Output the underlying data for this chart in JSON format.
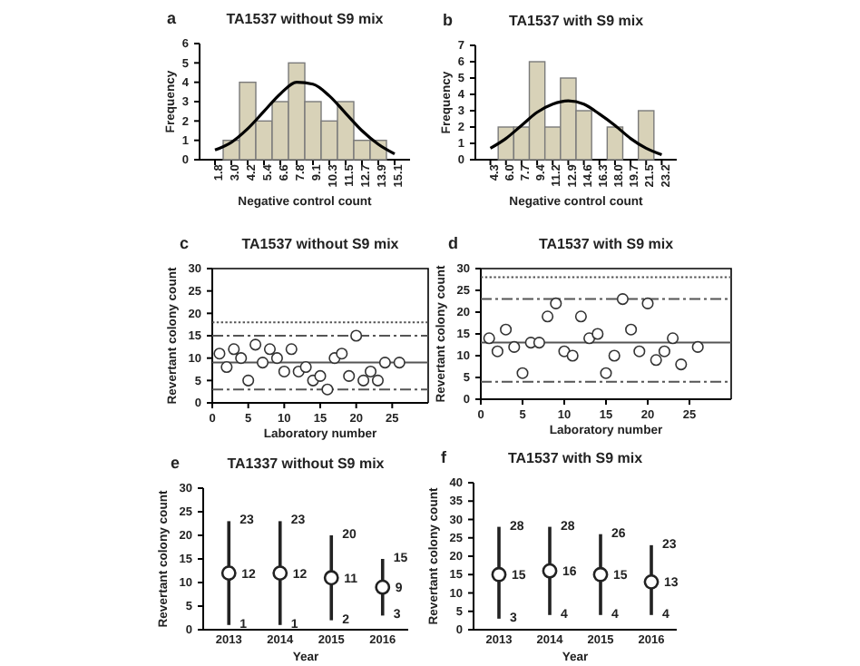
{
  "chart_data": [
    {
      "type": "bar",
      "title": "TA1537 without S9 mix",
      "xlabel": "Negative control count",
      "ylabel": "Frequency",
      "annotations": [
        "a"
      ],
      "categories": [
        "1.8",
        "3.0",
        "4.2",
        "5.4",
        "6.6",
        "7.8",
        "9.1",
        "10.3",
        "11.5",
        "12.7",
        "13.9",
        "15.1"
      ],
      "series": [
        {
          "type": "bar",
          "color": "#d8d2b8",
          "values": [
            0,
            1,
            4,
            2,
            3,
            5,
            3,
            2,
            3,
            1,
            1,
            0
          ]
        },
        {
          "type": "line",
          "color": "#000000",
          "values": [
            0.5,
            0.9,
            1.6,
            2.5,
            3.4,
            4.0,
            3.9,
            3.3,
            2.4,
            1.5,
            0.8,
            0.3
          ]
        }
      ],
      "ylim": [
        0,
        6
      ],
      "yticks": [
        0,
        1,
        2,
        3,
        4,
        5,
        6
      ]
    },
    {
      "type": "bar",
      "title": "TA1537 with S9 mix",
      "xlabel": "Negative control count",
      "ylabel": "Frequency",
      "annotations": [
        "b"
      ],
      "categories": [
        "4.3",
        "6.0",
        "7.7",
        "9.4",
        "11.2",
        "12.9",
        "14.6",
        "16.3",
        "18.0",
        "19.7",
        "21.5",
        "23.2"
      ],
      "series": [
        {
          "type": "bar",
          "color": "#d8d2b8",
          "values": [
            0,
            2,
            2,
            6,
            2,
            5,
            3,
            0,
            2,
            0,
            3,
            0
          ]
        },
        {
          "type": "line",
          "color": "#000000",
          "values": [
            0.7,
            1.3,
            2.1,
            2.9,
            3.4,
            3.6,
            3.4,
            2.8,
            2.1,
            1.3,
            0.7,
            0.3
          ]
        }
      ],
      "ylim": [
        0,
        7
      ],
      "yticks": [
        0,
        1,
        2,
        3,
        4,
        5,
        6,
        7
      ]
    },
    {
      "type": "scatter",
      "title": "TA1537 without S9 mix",
      "xlabel": "Laboratory number",
      "ylabel": "Revertant colony count",
      "annotations": [
        "c"
      ],
      "marker": "circle",
      "x": [
        1,
        2,
        3,
        4,
        5,
        6,
        7,
        8,
        9,
        10,
        11,
        12,
        13,
        14,
        15,
        16,
        17,
        18,
        19,
        20,
        21,
        22,
        23,
        24,
        26
      ],
      "series": [
        {
          "color": "#333333",
          "values": [
            11,
            8,
            12,
            10,
            5,
            13,
            9,
            12,
            10,
            7,
            12,
            7,
            8,
            5,
            6,
            3,
            10,
            11,
            6,
            15,
            5,
            7,
            5,
            9,
            9
          ]
        }
      ],
      "xlim": [
        0,
        30
      ],
      "xticks": [
        0,
        5,
        10,
        15,
        20,
        25
      ],
      "ylim": [
        0,
        30
      ],
      "yticks": [
        0,
        5,
        10,
        15,
        20,
        25,
        30
      ],
      "ref_lines": [
        {
          "axis": "y",
          "value": 9,
          "line_style": "solid",
          "color": "#555555"
        },
        {
          "axis": "y",
          "value": 15,
          "line_style": "dashed",
          "color": "#555555"
        },
        {
          "axis": "y",
          "value": 3,
          "line_style": "dashed",
          "color": "#555555"
        },
        {
          "axis": "y",
          "value": 18,
          "line_style": "dotted",
          "color": "#555555"
        }
      ]
    },
    {
      "type": "scatter",
      "title": "TA1537 with S9 mix",
      "xlabel": "Laboratory number",
      "ylabel": "Revertant colony count",
      "annotations": [
        "d"
      ],
      "marker": "circle",
      "x": [
        1,
        2,
        3,
        4,
        5,
        6,
        7,
        8,
        9,
        10,
        11,
        12,
        13,
        14,
        15,
        16,
        17,
        18,
        19,
        20,
        21,
        22,
        23,
        24,
        26
      ],
      "series": [
        {
          "color": "#333333",
          "values": [
            14,
            11,
            16,
            12,
            6,
            13,
            13,
            19,
            22,
            11,
            10,
            19,
            14,
            15,
            6,
            10,
            23,
            16,
            11,
            22,
            9,
            11,
            14,
            8,
            12
          ]
        }
      ],
      "xlim": [
        0,
        30
      ],
      "xticks": [
        0,
        5,
        10,
        15,
        20,
        25
      ],
      "ylim": [
        0,
        30
      ],
      "yticks": [
        0,
        5,
        10,
        15,
        20,
        25,
        30
      ],
      "ref_lines": [
        {
          "axis": "y",
          "value": 13,
          "line_style": "solid",
          "color": "#555555"
        },
        {
          "axis": "y",
          "value": 23,
          "line_style": "dashed",
          "color": "#555555"
        },
        {
          "axis": "y",
          "value": 4,
          "line_style": "dashed",
          "color": "#555555"
        },
        {
          "axis": "y",
          "value": 28,
          "line_style": "dotted",
          "color": "#555555"
        }
      ]
    },
    {
      "type": "scatter",
      "title": "TA1337 without S9 mix",
      "xlabel": "Year",
      "ylabel": "Revertant colony count",
      "annotations": [
        "e",
        {
          "text": "23",
          "x": "2013",
          "y": 23
        },
        {
          "text": "1",
          "x": "2013",
          "y": 1
        },
        {
          "text": "23",
          "x": "2014",
          "y": 23
        },
        {
          "text": "1",
          "x": "2014",
          "y": 1
        },
        {
          "text": "20",
          "x": "2015",
          "y": 20
        },
        {
          "text": "2",
          "x": "2015",
          "y": 2
        },
        {
          "text": "15",
          "x": "2016",
          "y": 15
        },
        {
          "text": "3",
          "x": "2016",
          "y": 3
        }
      ],
      "marker": "circle",
      "data_labels": true,
      "categories": [
        "2013",
        "2014",
        "2015",
        "2016"
      ],
      "series": [
        {
          "color": "#222222",
          "values": [
            12,
            12,
            11,
            9
          ],
          "errors": [
            [
              1,
              23
            ],
            [
              1,
              23
            ],
            [
              2,
              20
            ],
            [
              3,
              15
            ]
          ]
        }
      ],
      "ylim": [
        0,
        30
      ],
      "yticks": [
        0,
        5,
        10,
        15,
        20,
        25,
        30
      ]
    },
    {
      "type": "scatter",
      "title": "TA1537 with S9 mix",
      "xlabel": "Year",
      "ylabel": "Revertant colony count",
      "annotations": [
        "f",
        {
          "text": "28",
          "x": "2013",
          "y": 28
        },
        {
          "text": "3",
          "x": "2013",
          "y": 3
        },
        {
          "text": "28",
          "x": "2014",
          "y": 28
        },
        {
          "text": "4",
          "x": "2014",
          "y": 4
        },
        {
          "text": "26",
          "x": "2015",
          "y": 26
        },
        {
          "text": "4",
          "x": "2015",
          "y": 4
        },
        {
          "text": "23",
          "x": "2016",
          "y": 23
        },
        {
          "text": "4",
          "x": "2016",
          "y": 4
        }
      ],
      "marker": "circle",
      "data_labels": true,
      "categories": [
        "2013",
        "2014",
        "2015",
        "2016"
      ],
      "series": [
        {
          "color": "#222222",
          "values": [
            15,
            16,
            15,
            13
          ],
          "errors": [
            [
              3,
              28
            ],
            [
              4,
              28
            ],
            [
              4,
              26
            ],
            [
              4,
              23
            ]
          ]
        }
      ],
      "ylim": [
        0,
        40
      ],
      "yticks": [
        0,
        5,
        10,
        15,
        20,
        25,
        30,
        35,
        40
      ]
    }
  ]
}
